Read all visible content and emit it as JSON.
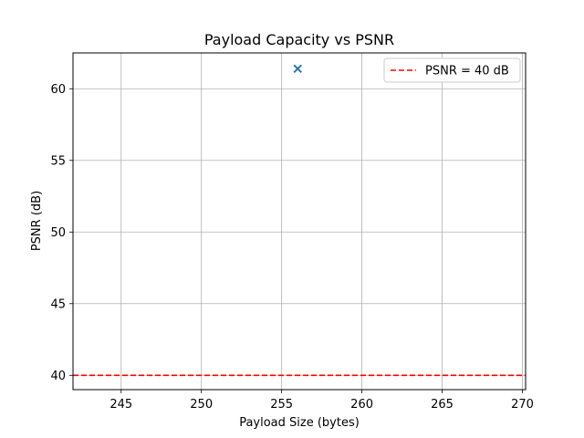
{
  "chart_data": {
    "type": "scatter",
    "title": "Payload Capacity vs PSNR",
    "xlabel": "Payload Size (bytes)",
    "ylabel": "PSNR (dB)",
    "xlim": [
      242,
      270.2
    ],
    "ylim": [
      39,
      62.5
    ],
    "xticks": [
      245,
      250,
      255,
      260,
      265,
      270
    ],
    "yticks": [
      40,
      45,
      50,
      55,
      60
    ],
    "grid": true,
    "legend_position": "top-right",
    "series": [
      {
        "marker": "x",
        "color": "#1f77b4",
        "points": [
          {
            "x": 256,
            "y": 61.4
          }
        ]
      }
    ],
    "reference_lines": [
      {
        "name": "PSNR = 40 dB",
        "orientation": "horizontal",
        "y": 40,
        "color": "#ff0000",
        "style": "dashed"
      }
    ]
  }
}
